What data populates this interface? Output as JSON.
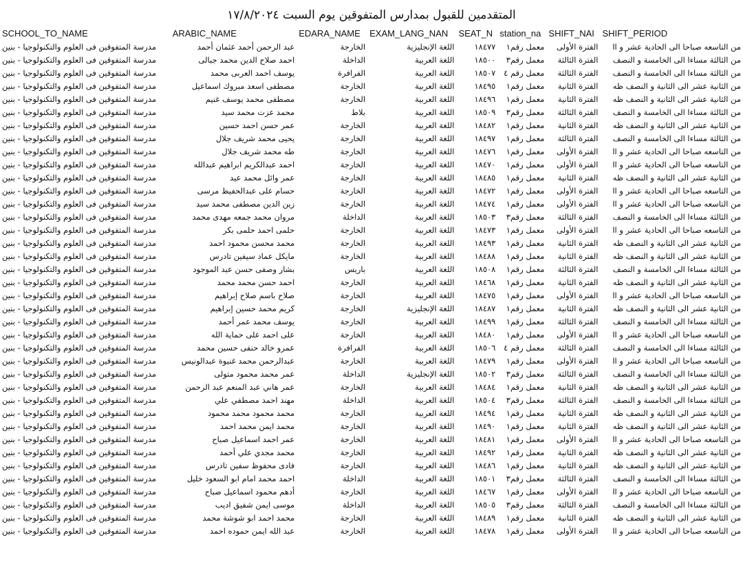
{
  "title": "المتقدمين للقبول بمدارس المتفوقين  يوم السبت ١٧/٨/٢٠٢٤",
  "headers": {
    "school": "SCHOOL_TO_NAME",
    "name": "ARABIC_NAME",
    "edara": "EDARA_NAME",
    "lang": "EXAM_LANG_NAN",
    "seat": "SEAT_N",
    "station": "station_na",
    "sname": "SHIFT_NAI",
    "speriod": "SHIFT_PERIOD"
  },
  "rows": [
    {
      "school": "مدرسة المتفوقين فى العلوم والتكنولوجيا - بنين",
      "name": "عبد الرحمن أحمد عثمان أحمد",
      "edara": "الخارجة",
      "lang": "اللغة الإنجليزية",
      "seat": "١٨٤٧٧",
      "station": "معمل رقم١",
      "sname": "الفترة الأولى",
      "speriod": "من التاسعه صباحا الى الحادية عشر و اا"
    },
    {
      "school": "مدرسة المتفوقين فى العلوم والتكنولوجيا - بنين",
      "name": "احمد صلاح الدين محمد جبالى",
      "edara": "الداخلة",
      "lang": "اللغة العربية",
      "seat": "١٨٥٠٠",
      "station": "معمل رقم٣",
      "sname": "الفترة الثالثة",
      "speriod": "من الثالثة مساءا الى الخامسة و النصف"
    },
    {
      "school": "مدرسة المتفوقين فى العلوم والتكنولوجيا - بنين",
      "name": "يوسف احمد العربى محمد",
      "edara": "الفرافرة",
      "lang": "اللغة العربية",
      "seat": "١٨٥٠٧",
      "station": "معمل رقم ٤",
      "sname": "الفترة الثالثة",
      "speriod": "من الثالثة مساءا الى الخامسة و النصف"
    },
    {
      "school": "مدرسة المتفوقين فى العلوم والتكنولوجيا - بنين",
      "name": "مصطفى اسعد مبروك اسماعيل",
      "edara": "الخارجة",
      "lang": "اللغة العربية",
      "seat": "١٨٤٩٥",
      "station": "معمل رقم١",
      "sname": "الفترة الثانية",
      "speriod": "من الثانية عشر الى الثانية و النصف ظه"
    },
    {
      "school": "مدرسة المتفوقين فى العلوم والتكنولوجيا - بنين",
      "name": "مصطفى محمد يوسف غنيم",
      "edara": "الخارجة",
      "lang": "اللغة العربية",
      "seat": "١٨٤٩٦",
      "station": "معمل رقم١",
      "sname": "الفترة الثانية",
      "speriod": "من الثانية عشر الى الثانية و النصف ظه"
    },
    {
      "school": "مدرسة المتفوقين فى العلوم والتكنولوجيا - بنين",
      "name": "محمد عزت محمد سيد",
      "edara": "بلاط",
      "lang": "اللغة العربية",
      "seat": "١٨٥٠٩",
      "station": "معمل رقم٣",
      "sname": "الفترة الثالثة",
      "speriod": "من الثالثة مساءا الى الخامسة و النصف"
    },
    {
      "school": "مدرسة المتفوقين فى العلوم والتكنولوجيا - بنين",
      "name": "عمر حسن احمد حسين",
      "edara": "الخارجة",
      "lang": "اللغة العربية",
      "seat": "١٨٤٨٢",
      "station": "معمل رقم١",
      "sname": "الفترة الثانية",
      "speriod": "من الثانية عشر الى الثانية و النصف ظه"
    },
    {
      "school": "مدرسة المتفوقين فى العلوم والتكنولوجيا - بنين",
      "name": "يحيى محمد شريف جلال",
      "edara": "الخارجة",
      "lang": "اللغة العربية",
      "seat": "١٨٤٩٧",
      "station": "معمل رقم١",
      "sname": "الفترة الثالثة",
      "speriod": "من الثالثة مساءا الى الخامسة و النصف"
    },
    {
      "school": "مدرسة المتفوقين فى العلوم والتكنولوجيا - بنين",
      "name": "طه محمد شريف جلال",
      "edara": "الخارجة",
      "lang": "اللغة العربية",
      "seat": "١٨٤٧٦",
      "station": "معمل رقم١",
      "sname": "الفترة الأولى",
      "speriod": "من التاسعه صباحا الى الحادية عشر و اا"
    },
    {
      "school": "مدرسة المتفوقين فى العلوم والتكنولوجيا - بنين",
      "name": "احمد عبدالكريم ابراهيم عبدالله",
      "edara": "الخارجة",
      "lang": "اللغة العربية",
      "seat": "١٨٤٧٠",
      "station": "معمل رقم١",
      "sname": "الفترة الأولى",
      "speriod": "من التاسعه صباحا الى الحادية عشر و اا"
    },
    {
      "school": "مدرسة المتفوقين فى العلوم والتكنولوجيا - بنين",
      "name": "عمر وائل محمد عيد",
      "edara": "الخارجة",
      "lang": "اللغة العربية",
      "seat": "١٨٤٨٥",
      "station": "معمل رقم١",
      "sname": "الفترة الثانية",
      "speriod": "من الثانية عشر الى الثانية و النصف ظه"
    },
    {
      "school": "مدرسة المتفوقين فى العلوم والتكنولوجيا - بنين",
      "name": "حسام على عبدالحفيظ مرسى",
      "edara": "الخارجة",
      "lang": "اللغة العربية",
      "seat": "١٨٤٧٢",
      "station": "معمل رقم١",
      "sname": "الفترة الأولى",
      "speriod": "من التاسعه صباحا الى الحادية عشر و اا"
    },
    {
      "school": "مدرسة المتفوقين فى العلوم والتكنولوجيا - بنين",
      "name": "زين الدين مصطفى محمد سيد",
      "edara": "الخارجة",
      "lang": "اللغة العربية",
      "seat": "١٨٤٧٤",
      "station": "معمل رقم١",
      "sname": "الفترة الأولى",
      "speriod": "من التاسعه صباحا الى الحادية عشر و اا"
    },
    {
      "school": "مدرسة المتفوقين فى العلوم والتكنولوجيا - بنين",
      "name": "مروان محمد جمعه مهدى محمد",
      "edara": "الداخلة",
      "lang": "اللغة العربية",
      "seat": "١٨٥٠٣",
      "station": "معمل رقم٣",
      "sname": "الفترة الثالثة",
      "speriod": "من الثالثة مساءا الى الخامسة و النصف"
    },
    {
      "school": "مدرسة المتفوقين فى العلوم والتكنولوجيا - بنين",
      "name": "حلمى احمد حلمى بكر",
      "edara": "الخارجة",
      "lang": "اللغة العربية",
      "seat": "١٨٤٧٣",
      "station": "معمل رقم١",
      "sname": "الفترة الأولى",
      "speriod": "من التاسعه صباحا الى الحادية عشر و اا"
    },
    {
      "school": "مدرسة المتفوقين فى العلوم والتكنولوجيا - بنين",
      "name": "محمد محسن محمود احمد",
      "edara": "الخارجة",
      "lang": "اللغة العربية",
      "seat": "١٨٤٩٣",
      "station": "معمل رقم١",
      "sname": "الفترة الثانية",
      "speriod": "من الثانية عشر الى الثانية و النصف ظه"
    },
    {
      "school": "مدرسة المتفوقين فى العلوم والتكنولوجيا - بنين",
      "name": "مايكل عماد سيفين تادرس",
      "edara": "الخارجة",
      "lang": "اللغة العربية",
      "seat": "١٨٤٨٨",
      "station": "معمل رقم١",
      "sname": "الفترة الثانية",
      "speriod": "من الثانية عشر الى الثانية و النصف ظه"
    },
    {
      "school": "مدرسة المتفوقين فى العلوم والتكنولوجيا - بنين",
      "name": "بشار وصفى حسن عبد الموجود",
      "edara": "باريس",
      "lang": "اللغة العربية",
      "seat": "١٨٥٠٨",
      "station": "معمل رقم١",
      "sname": "الفترة الثالثة",
      "speriod": "من الثالثة مساءا الى الخامسة و النصف"
    },
    {
      "school": "مدرسة المتفوقين فى العلوم والتكنولوجيا - بنين",
      "name": "احمد حسن محمد محمد",
      "edara": "الخارجة",
      "lang": "اللغة العربية",
      "seat": "١٨٤٦٨",
      "station": "معمل رقم١",
      "sname": "الفترة الثانية",
      "speriod": "من الثانية عشر الى الثانية و النصف ظه"
    },
    {
      "school": "مدرسة المتفوقين فى العلوم والتكنولوجيا - بنين",
      "name": "صلاح باسم صلاح إبراهيم",
      "edara": "الخارجة",
      "lang": "اللغة العربية",
      "seat": "١٨٤٧٥",
      "station": "معمل رقم١",
      "sname": "الفترة الأولى",
      "speriod": "من التاسعه صباحا الى الحادية عشر و اا"
    },
    {
      "school": "مدرسة المتفوقين فى العلوم والتكنولوجيا - بنين",
      "name": "كريم محمد حسين إبراهيم",
      "edara": "الخارجة",
      "lang": "اللغة الإنجليزية",
      "seat": "١٨٤٨٧",
      "station": "معمل رقم١",
      "sname": "الفترة الثانية",
      "speriod": "من الثانية عشر الى الثانية و النصف ظه"
    },
    {
      "school": "مدرسة المتفوقين فى العلوم والتكنولوجيا - بنين",
      "name": "يوسف محمد عمر أحمد",
      "edara": "الخارجة",
      "lang": "اللغة العربية",
      "seat": "١٨٤٩٩",
      "station": "معمل رقم١",
      "sname": "الفترة الثالثة",
      "speriod": "من الثالثة مساءا الى الخامسة و النصف"
    },
    {
      "school": "مدرسة المتفوقين فى العلوم والتكنولوجيا - بنين",
      "name": "على احمد على حماية الله",
      "edara": "الخارجة",
      "lang": "اللغة العربية",
      "seat": "١٨٤٨٠",
      "station": "معمل رقم١",
      "sname": "الفترة الأولى",
      "speriod": "من التاسعه صباحا الى الحادية عشر و اا"
    },
    {
      "school": "مدرسة المتفوقين فى العلوم والتكنولوجيا - بنين",
      "name": "عمرو خالد حنفى حسين محمد",
      "edara": "الفرافرة",
      "lang": "اللغة العربية",
      "seat": "١٨٥٠٦",
      "station": "معمل رقم ٤",
      "sname": "الفترة الثالثة",
      "speriod": "من الثالثة مساءا الى الخامسة و النصف"
    },
    {
      "school": "مدرسة المتفوقين فى العلوم والتكنولوجيا - بنين",
      "name": "عبدالرحمن محمد غنيوة عبدالونيس",
      "edara": "الخارجة",
      "lang": "اللغة العربية",
      "seat": "١٨٤٧٩",
      "station": "معمل رقم١",
      "sname": "الفترة الأولى",
      "speriod": "من التاسعه صباحا الى الحادية عشر و اا"
    },
    {
      "school": "مدرسة المتفوقين فى العلوم والتكنولوجيا - بنين",
      "name": "عمر محمد محمود متولى",
      "edara": "الداخلة",
      "lang": "اللغة الإنجليزية",
      "seat": "١٨٥٠٢",
      "station": "معمل رقم٣",
      "sname": "الفترة الثالثة",
      "speriod": "من الثالثة مساءا الى الخامسة و النصف"
    },
    {
      "school": "مدرسة المتفوقين فى العلوم والتكنولوجيا - بنين",
      "name": "عمر هاني عبد المنعم عبد الرحمن",
      "edara": "الخارجة",
      "lang": "اللغة العربية",
      "seat": "١٨٤٨٤",
      "station": "معمل رقم١",
      "sname": "الفترة الثانية",
      "speriod": "من الثانية عشر الى الثانية و النصف ظه"
    },
    {
      "school": "مدرسة المتفوقين فى العلوم والتكنولوجيا - بنين",
      "name": "مهند احمد مصطفي علي",
      "edara": "الداخلة",
      "lang": "اللغة العربية",
      "seat": "١٨٥٠٤",
      "station": "معمل رقم٣",
      "sname": "الفترة الثالثة",
      "speriod": "من الثالثة مساءا الى الخامسة و النصف"
    },
    {
      "school": "مدرسة المتفوقين فى العلوم والتكنولوجيا - بنين",
      "name": "محمد محمود محمد محمود",
      "edara": "الخارجة",
      "lang": "اللغة العربية",
      "seat": "١٨٤٩٤",
      "station": "معمل رقم١",
      "sname": "الفترة الثانية",
      "speriod": "من الثانية عشر الى الثانية و النصف ظه"
    },
    {
      "school": "مدرسة المتفوقين فى العلوم والتكنولوجيا - بنين",
      "name": "محمد ايمن محمد احمد",
      "edara": "الخارجة",
      "lang": "اللغة العربية",
      "seat": "١٨٤٩٠",
      "station": "معمل رقم١",
      "sname": "الفترة الثانية",
      "speriod": "من الثانية عشر الى الثانية و النصف ظه"
    },
    {
      "school": "مدرسة المتفوقين فى العلوم والتكنولوجيا - بنين",
      "name": "عمر احمد اسماعيل صباح",
      "edara": "الخارجة",
      "lang": "اللغة العربية",
      "seat": "١٨٤٨١",
      "station": "معمل رقم١",
      "sname": "الفترة الأولى",
      "speriod": "من التاسعه صباحا الى الحادية عشر و اا"
    },
    {
      "school": "مدرسة المتفوقين فى العلوم والتكنولوجيا - بنين",
      "name": "محمد مجدي علي أحمد",
      "edara": "الخارجة",
      "lang": "اللغة العربية",
      "seat": "١٨٤٩٢",
      "station": "معمل رقم١",
      "sname": "الفترة الثانية",
      "speriod": "من الثانية عشر الى الثانية و النصف ظه"
    },
    {
      "school": "مدرسة المتفوقين فى العلوم والتكنولوجيا - بنين",
      "name": "فادى محفوظ سفين تادرس",
      "edara": "الخارجة",
      "lang": "اللغة العربية",
      "seat": "١٨٤٨٦",
      "station": "معمل رقم١",
      "sname": "الفترة الثانية",
      "speriod": "من الثانية عشر الى الثانية و النصف ظه"
    },
    {
      "school": "مدرسة المتفوقين فى العلوم والتكنولوجيا - بنين",
      "name": "احمد محمد امام ابو السعود خليل",
      "edara": "الداخلة",
      "lang": "اللغة العربية",
      "seat": "١٨٥٠١",
      "station": "معمل رقم٣",
      "sname": "الفترة الثالثة",
      "speriod": "من الثالثة مساءا الى الخامسة و النصف"
    },
    {
      "school": "مدرسة المتفوقين فى العلوم والتكنولوجيا - بنين",
      "name": "أدهم محمود اسماعيل صباح",
      "edara": "الخارجة",
      "lang": "اللغة العربية",
      "seat": "١٨٤٦٧",
      "station": "معمل رقم١",
      "sname": "الفترة الأولى",
      "speriod": "من التاسعه صباحا الى الحادية عشر و اا"
    },
    {
      "school": "مدرسة المتفوقين فى العلوم والتكنولوجيا - بنين",
      "name": "موسى ايمن شفيق اديب",
      "edara": "الداخلة",
      "lang": "اللغة العربية",
      "seat": "١٨٥٠٥",
      "station": "معمل رقم٣",
      "sname": "الفترة الثالثة",
      "speriod": "من الثالثة مساءا الى الخامسة و النصف"
    },
    {
      "school": "مدرسة المتفوقين فى العلوم والتكنولوجيا - بنين",
      "name": "محمد احمد ابو شوشة محمد",
      "edara": "الخارجة",
      "lang": "اللغة العربية",
      "seat": "١٨٤٨٩",
      "station": "معمل رقم١",
      "sname": "الفترة الثانية",
      "speriod": "من الثانية عشر الى الثانية و النصف ظه"
    },
    {
      "school": "مدرسة المتفوقين فى العلوم والتكنولوجيا - بنين",
      "name": "عبد الله ايمن حموده احمد",
      "edara": "الخارجة",
      "lang": "اللغة العربية",
      "seat": "١٨٤٧٨",
      "station": "معمل رقم١",
      "sname": "الفترة الأولى",
      "speriod": "من التاسعه صباحا الى الحادية عشر و اا"
    }
  ]
}
